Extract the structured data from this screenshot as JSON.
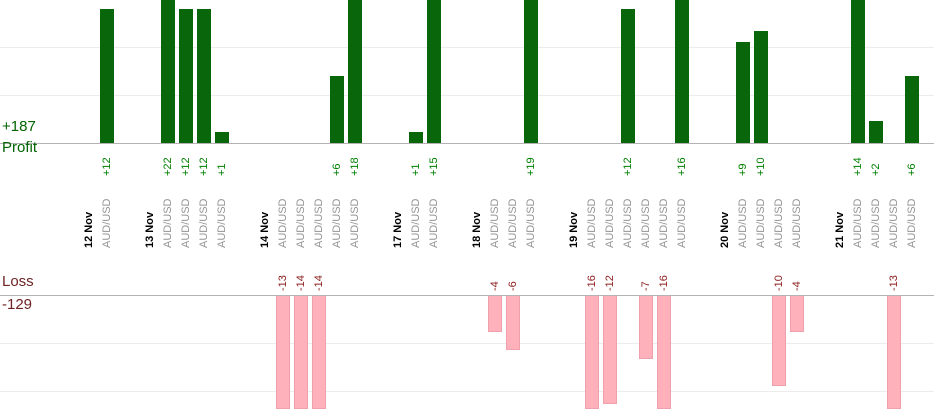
{
  "chart_data": {
    "type": "bar",
    "description": "Daily trade profit and loss bars grouped by date, rotated labels",
    "profit": {
      "axis_label": "Profit",
      "total_label": "+187",
      "bar_color": "#0a660a",
      "label_color": "#008000"
    },
    "loss": {
      "axis_label": "Loss",
      "total_label": "-129",
      "bar_color": "#ffb1bb",
      "label_color": "#8b1c1c"
    },
    "groups": [
      {
        "date": "12 Nov",
        "trades": [
          {
            "symbol": "AUD/USD",
            "value": 12,
            "label": "+12"
          }
        ]
      },
      {
        "date": "13 Nov",
        "trades": [
          {
            "symbol": "AUD/USD",
            "value": 22,
            "label": "+22"
          },
          {
            "symbol": "AUD/USD",
            "value": 12,
            "label": "+12"
          },
          {
            "symbol": "AUD/USD",
            "value": 12,
            "label": "+12"
          },
          {
            "symbol": "AUD/USD",
            "value": 1,
            "label": "+1"
          }
        ]
      },
      {
        "date": "14 Nov",
        "trades": [
          {
            "symbol": "AUD/USD",
            "value": -13,
            "label": "-13"
          },
          {
            "symbol": "AUD/USD",
            "value": -14,
            "label": "-14"
          },
          {
            "symbol": "AUD/USD",
            "value": -14,
            "label": "-14"
          },
          {
            "symbol": "AUD/USD",
            "value": 6,
            "label": "+6"
          },
          {
            "symbol": "AUD/USD",
            "value": 18,
            "label": "+18"
          }
        ]
      },
      {
        "date": "17 Nov",
        "trades": [
          {
            "symbol": "AUD/USD",
            "value": 1,
            "label": "+1"
          },
          {
            "symbol": "AUD/USD",
            "value": 15,
            "label": "+15"
          }
        ]
      },
      {
        "date": "18 Nov",
        "trades": [
          {
            "symbol": "AUD/USD",
            "value": -4,
            "label": "-4"
          },
          {
            "symbol": "AUD/USD",
            "value": -6,
            "label": "-6"
          },
          {
            "symbol": "AUD/USD",
            "value": 19,
            "label": "+19"
          }
        ]
      },
      {
        "date": "19 Nov",
        "trades": [
          {
            "symbol": "AUD/USD",
            "value": -16,
            "label": "-16"
          },
          {
            "symbol": "AUD/USD",
            "value": -12,
            "label": "-12"
          },
          {
            "symbol": "AUD/USD",
            "value": 12,
            "label": "+12"
          },
          {
            "symbol": "AUD/USD",
            "value": -7,
            "label": "-7"
          },
          {
            "symbol": "AUD/USD",
            "value": -16,
            "label": "-16"
          },
          {
            "symbol": "AUD/USD",
            "value": 16,
            "label": "+16"
          }
        ]
      },
      {
        "date": "20 Nov",
        "trades": [
          {
            "symbol": "AUD/USD",
            "value": 9,
            "label": "+9"
          },
          {
            "symbol": "AUD/USD",
            "value": 10,
            "label": "+10"
          },
          {
            "symbol": "AUD/USD",
            "value": -10,
            "label": "-10"
          },
          {
            "symbol": "AUD/USD",
            "value": -4,
            "label": "-4"
          }
        ]
      },
      {
        "date": "21 Nov",
        "trades": [
          {
            "symbol": "AUD/USD",
            "value": 14,
            "label": "+14"
          },
          {
            "symbol": "AUD/USD",
            "value": 2,
            "label": "+2"
          },
          {
            "symbol": "AUD/USD",
            "value": -13,
            "label": "-13"
          },
          {
            "symbol": "AUD/USD",
            "value": 6,
            "label": "+6"
          }
        ]
      }
    ]
  }
}
